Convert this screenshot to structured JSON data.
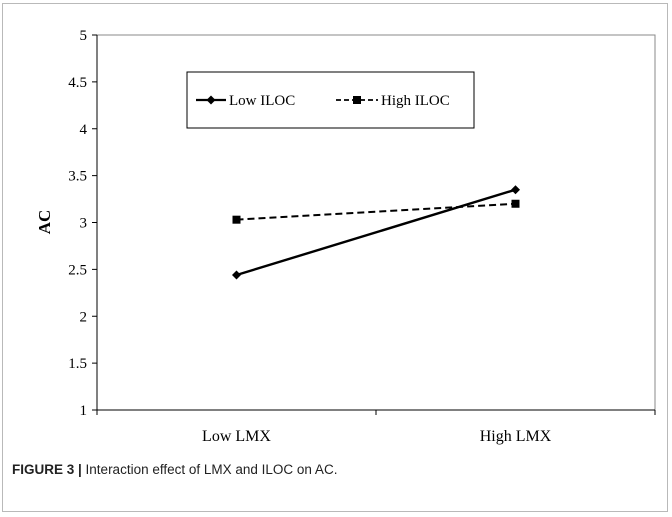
{
  "chart_data": {
    "type": "line",
    "categories": [
      "Low LMX",
      "High LMX"
    ],
    "series": [
      {
        "name": "Low ILOC",
        "values": [
          2.44,
          3.35
        ],
        "style": "solid",
        "marker": "diamond",
        "color": "#000000"
      },
      {
        "name": "High ILOC",
        "values": [
          3.03,
          3.2
        ],
        "style": "dashed",
        "marker": "square",
        "color": "#000000"
      }
    ],
    "ylabel": "AC",
    "xlabel": "",
    "ylim": [
      1,
      5
    ],
    "yticks": [
      "1",
      "1.5",
      "2",
      "2.5",
      "3",
      "3.5",
      "4",
      "4.5",
      "5"
    ],
    "grid": false,
    "legend_position": "top"
  },
  "caption": {
    "label": "FIGURE 3 |",
    "text": " Interaction effect of LMX and ILOC on AC."
  }
}
